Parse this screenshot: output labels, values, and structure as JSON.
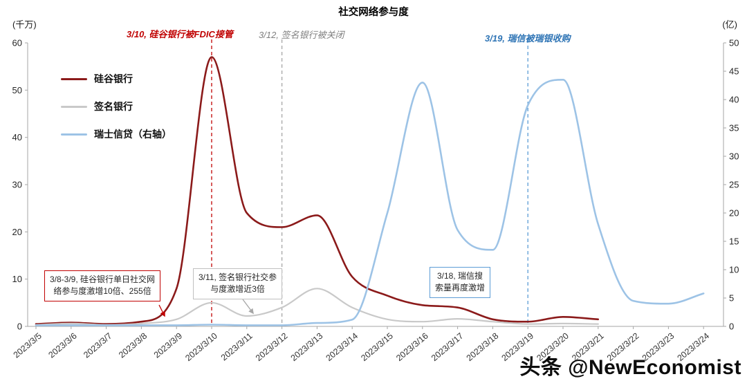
{
  "chart": {
    "title": "社交网络参与度",
    "left_axis_unit": "(千万)",
    "right_axis_unit": "(亿)"
  },
  "chart_data": {
    "type": "line",
    "title": "社交网络参与度",
    "grid": false,
    "legend_position": "top-left",
    "x": [
      "2023/3/5",
      "2023/3/6",
      "2023/3/7",
      "2023/3/8",
      "2023/3/9",
      "2023/3/10",
      "2023/3/11",
      "2023/3/12",
      "2023/3/13",
      "2023/3/14",
      "2023/3/15",
      "2023/3/16",
      "2023/3/17",
      "2023/3/18",
      "2023/3/19",
      "2023/3/20",
      "2023/3/21",
      "2023/3/22",
      "2023/3/23",
      "2023/3/24"
    ],
    "left_axis": {
      "label": "(千万)",
      "range": [
        0,
        60
      ],
      "tick_step": 10
    },
    "right_axis": {
      "label": "(亿)",
      "range": [
        0,
        50
      ],
      "tick_step": 5
    },
    "series": [
      {
        "id": "svb",
        "name": "硅谷银行",
        "axis": "left",
        "color": "#8b1a1a",
        "width": 2.6,
        "values": [
          0.5,
          0.8,
          0.5,
          1,
          8,
          57,
          24,
          21,
          23.5,
          10.5,
          6.5,
          4.5,
          4,
          1.5,
          1,
          2,
          1.5,
          null,
          null,
          null
        ]
      },
      {
        "id": "signature",
        "name": "签名银行",
        "axis": "left",
        "color": "#c9c9c9",
        "width": 2.2,
        "values": [
          0.3,
          0.6,
          0.3,
          0.6,
          1.5,
          5,
          2.2,
          4,
          8,
          4,
          1.5,
          1,
          1.6,
          1,
          0.5,
          0.6,
          0.5,
          null,
          null,
          null
        ]
      },
      {
        "id": "credit-suisse",
        "name": "瑞士信贷（右轴）",
        "axis": "right",
        "color": "#9dc3e6",
        "width": 2.6,
        "values": [
          0.2,
          0.2,
          0.2,
          0.2,
          0.2,
          0.3,
          0.2,
          0.2,
          0.6,
          1.2,
          20,
          43,
          17,
          13.5,
          39,
          43.5,
          18,
          4.5,
          4,
          5.8
        ]
      }
    ],
    "event_lines": [
      {
        "id": "fdic-takeover",
        "date": "2023/3/10",
        "label": "3/10, 硅谷银行被FDIC接管",
        "color": "#c00000",
        "line_color": "#c00000",
        "bold": true
      },
      {
        "id": "signature-closed",
        "date": "2023/3/12",
        "label": "3/12, 签名银行被关闭",
        "color": "#7f7f7f",
        "line_color": "#a6a6a6",
        "bold": false
      },
      {
        "id": "ubs-acquisition",
        "date": "2023/3/19",
        "label": "3/19, 瑞信被瑞银收购",
        "color": "#2e74b5",
        "line_color": "#5b9bd5",
        "bold": true
      }
    ],
    "callouts": [
      {
        "id": "svb",
        "border_color": "#c00000",
        "lines": [
          "3/8-3/9, 硅谷银行单日社交网",
          "络参与度激增10倍、255倍"
        ]
      },
      {
        "id": "signature",
        "border_color": "#bfbfbf",
        "lines": [
          "3/11, 签名银行社交参",
          "与度激增近3倍"
        ]
      },
      {
        "id": "credit-suisse",
        "border_color": "#5b9bd5",
        "lines": [
          "3/18, 瑞信搜",
          "索量再度激增"
        ]
      }
    ]
  },
  "watermark": {
    "text": "头条 @NewEconomist"
  }
}
